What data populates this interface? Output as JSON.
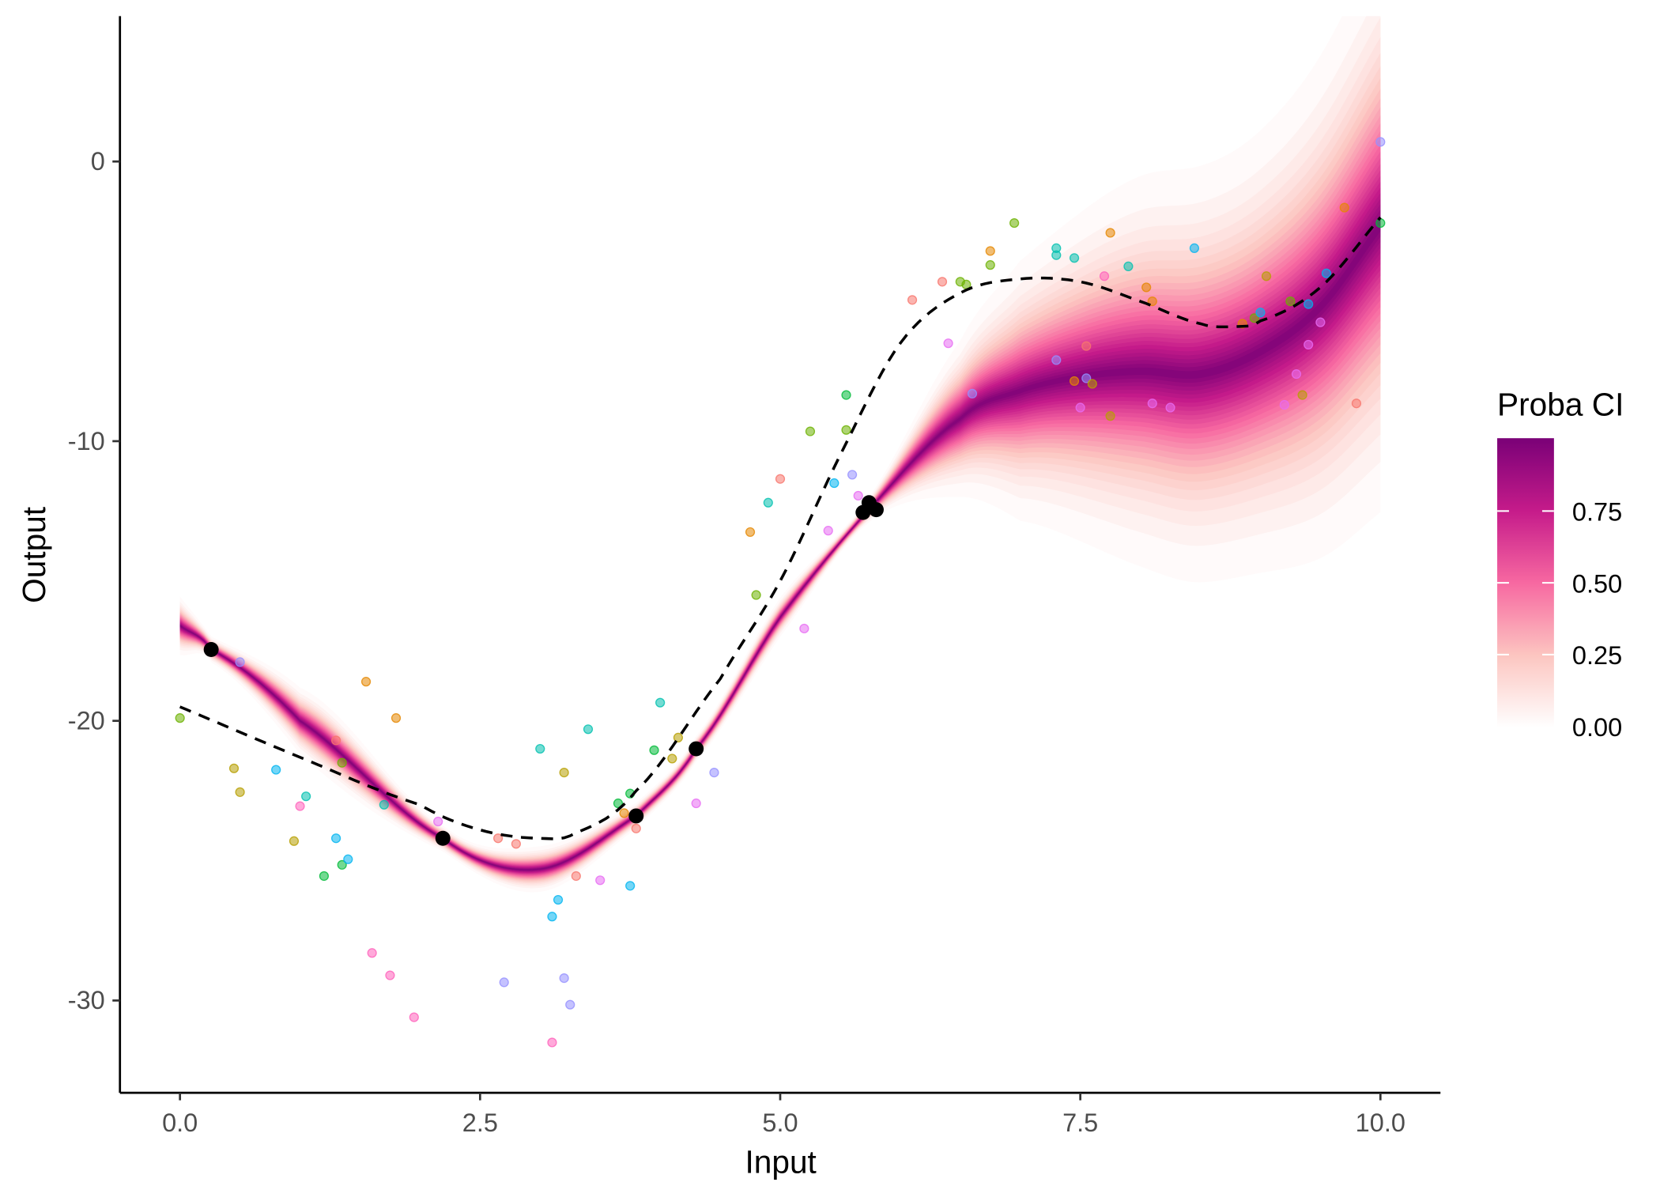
{
  "chart_data": {
    "type": "line",
    "xlabel": "Input",
    "ylabel": "Output",
    "xlim": [
      -0.5,
      10.5
    ],
    "ylim": [
      -33.3,
      5.2
    ],
    "x_ticks": [
      0,
      2.5,
      5,
      7.5,
      10
    ],
    "x_tick_labels": [
      "0.0",
      "2.5",
      "5.0",
      "7.5",
      "10.0"
    ],
    "y_ticks": [
      0,
      -10,
      -20,
      -30
    ],
    "y_tick_labels": [
      "0",
      "-10",
      "-20",
      "-30"
    ],
    "grid": false,
    "legend": {
      "title": "Proba CI",
      "placement": "right",
      "ticks": [
        0.75,
        0.5,
        0.25,
        0
      ],
      "tick_labels": [
        "0.75",
        "0.50",
        "0.25",
        "0.00"
      ],
      "palette": [
        "#FFFFFF",
        "#FCC5C0",
        "#F768A1",
        "#C51B8A",
        "#7A0177"
      ]
    },
    "prediction_mean": {
      "x": [
        0,
        0.26,
        1,
        2.19,
        3,
        3.8,
        4.3,
        5,
        5.75,
        6.5,
        7,
        7.5,
        8,
        8.5,
        9,
        9.5,
        10
      ],
      "y": [
        -16.6,
        -17.45,
        -20.0,
        -24.2,
        -25.3,
        -23.4,
        -21.0,
        -16.3,
        -12.4,
        -9.2,
        -8.2,
        -7.7,
        -7.5,
        -7.6,
        -6.8,
        -5.2,
        -2.3
      ]
    },
    "prediction_sd": {
      "x": [
        0,
        0.26,
        1.2,
        2.19,
        3,
        3.8,
        4.3,
        5,
        5.75,
        6.5,
        7,
        8,
        9,
        10
      ],
      "sd": [
        0.45,
        0.2,
        0.55,
        0.2,
        0.35,
        0.2,
        0.2,
        0.3,
        0.2,
        1.2,
        2.0,
        3.0,
        3.4,
        4.4
      ]
    },
    "dashed_curve": {
      "x": [
        0,
        1,
        2,
        2.5,
        3,
        3.3,
        3.8,
        4.5,
        5,
        5.5,
        6,
        6.5,
        7,
        7.5,
        8,
        8.5,
        8.8,
        9,
        9.5,
        10
      ],
      "y": [
        -19.5,
        -21.3,
        -23.0,
        -23.9,
        -24.2,
        -24.0,
        -22.5,
        -18.5,
        -15.0,
        -10.5,
        -6.5,
        -4.7,
        -4.2,
        -4.3,
        -5.0,
        -5.8,
        -5.9,
        -5.7,
        -4.5,
        -2.0
      ]
    },
    "observations": [
      [
        0.26,
        -17.45
      ],
      [
        2.19,
        -24.2
      ],
      [
        3.8,
        -23.4
      ],
      [
        4.3,
        -21.0
      ],
      [
        5.69,
        -12.55
      ],
      [
        5.74,
        -12.2
      ],
      [
        5.8,
        -12.45
      ]
    ],
    "sample_colors": [
      "#F8766D",
      "#E58700",
      "#B79F00",
      "#6BB100",
      "#00BA38",
      "#00C0AF",
      "#00B4F0",
      "#9590FF",
      "#E76BF3",
      "#FF62BC"
    ],
    "samples": [
      [
        0,
        -19.9,
        3
      ],
      [
        0.5,
        -17.9,
        7
      ],
      [
        0.45,
        -21.7,
        2
      ],
      [
        0.5,
        -22.55,
        2
      ],
      [
        0.8,
        -21.75,
        6
      ],
      [
        1.05,
        -22.7,
        5
      ],
      [
        1.0,
        -23.05,
        9
      ],
      [
        0.95,
        -24.3,
        2
      ],
      [
        1.2,
        -25.55,
        4
      ],
      [
        1.3,
        -24.2,
        6
      ],
      [
        1.35,
        -25.15,
        4
      ],
      [
        1.4,
        -24.95,
        6
      ],
      [
        1.3,
        -20.7,
        0
      ],
      [
        1.35,
        -21.5,
        3
      ],
      [
        1.55,
        -18.6,
        1
      ],
      [
        1.8,
        -19.9,
        1
      ],
      [
        1.7,
        -23.0,
        5
      ],
      [
        1.6,
        -28.3,
        9
      ],
      [
        1.75,
        -29.1,
        9
      ],
      [
        1.95,
        -30.6,
        9
      ],
      [
        2.15,
        -23.6,
        8
      ],
      [
        2.65,
        -24.2,
        0
      ],
      [
        2.8,
        -24.4,
        0
      ],
      [
        2.7,
        -29.35,
        7
      ],
      [
        3.0,
        -21.0,
        5
      ],
      [
        3.2,
        -21.85,
        2
      ],
      [
        3.4,
        -20.3,
        5
      ],
      [
        3.3,
        -25.55,
        0
      ],
      [
        3.5,
        -25.7,
        8
      ],
      [
        3.15,
        -26.4,
        6
      ],
      [
        3.1,
        -27.0,
        6
      ],
      [
        3.2,
        -29.2,
        7
      ],
      [
        3.25,
        -30.15,
        7
      ],
      [
        3.1,
        -31.5,
        9
      ],
      [
        3.65,
        -22.95,
        4
      ],
      [
        3.7,
        -23.3,
        1
      ],
      [
        3.75,
        -22.6,
        4
      ],
      [
        3.8,
        -23.85,
        0
      ],
      [
        3.75,
        -25.9,
        6
      ],
      [
        3.95,
        -21.05,
        4
      ],
      [
        4.0,
        -19.35,
        5
      ],
      [
        4.1,
        -21.35,
        2
      ],
      [
        4.15,
        -20.6,
        2
      ],
      [
        4.3,
        -22.95,
        8
      ],
      [
        4.45,
        -21.85,
        7
      ],
      [
        4.75,
        -13.25,
        1
      ],
      [
        4.8,
        -15.5,
        3
      ],
      [
        4.9,
        -12.2,
        5
      ],
      [
        5.0,
        -11.35,
        0
      ],
      [
        5.2,
        -16.7,
        8
      ],
      [
        5.25,
        -9.65,
        3
      ],
      [
        5.4,
        -13.2,
        8
      ],
      [
        5.45,
        -11.5,
        6
      ],
      [
        5.55,
        -8.35,
        4
      ],
      [
        5.55,
        -9.6,
        3
      ],
      [
        5.6,
        -11.2,
        7
      ],
      [
        5.65,
        -11.95,
        8
      ],
      [
        6.1,
        -4.95,
        0
      ],
      [
        6.35,
        -4.3,
        0
      ],
      [
        6.4,
        -6.5,
        8
      ],
      [
        6.5,
        -4.3,
        3
      ],
      [
        6.55,
        -4.4,
        3
      ],
      [
        6.6,
        -8.3,
        7
      ],
      [
        6.75,
        -3.2,
        1
      ],
      [
        6.75,
        -3.7,
        3
      ],
      [
        6.95,
        -2.2,
        3
      ],
      [
        7.3,
        -3.1,
        5
      ],
      [
        7.3,
        -3.35,
        5
      ],
      [
        7.3,
        -7.1,
        7
      ],
      [
        7.45,
        -3.45,
        5
      ],
      [
        7.45,
        -7.85,
        1
      ],
      [
        7.5,
        -8.8,
        8
      ],
      [
        7.55,
        -7.75,
        7
      ],
      [
        7.55,
        -6.6,
        0
      ],
      [
        7.6,
        -7.95,
        2
      ],
      [
        7.7,
        -4.1,
        9
      ],
      [
        7.75,
        -2.55,
        1
      ],
      [
        7.75,
        -9.1,
        2
      ],
      [
        7.9,
        -3.75,
        5
      ],
      [
        8.05,
        -4.5,
        1
      ],
      [
        8.1,
        -5.0,
        1
      ],
      [
        8.1,
        -8.65,
        8
      ],
      [
        8.25,
        -8.8,
        8
      ],
      [
        8.45,
        -3.1,
        6
      ],
      [
        8.85,
        -5.8,
        1
      ],
      [
        8.95,
        -5.6,
        3
      ],
      [
        9.0,
        -5.4,
        6
      ],
      [
        9.05,
        -4.1,
        2
      ],
      [
        9.2,
        -8.7,
        8
      ],
      [
        9.25,
        -5.0,
        3
      ],
      [
        9.3,
        -7.6,
        8
      ],
      [
        9.35,
        -8.35,
        2
      ],
      [
        9.4,
        -5.1,
        6
      ],
      [
        9.4,
        -6.55,
        8
      ],
      [
        9.5,
        -5.75,
        8
      ],
      [
        9.55,
        -4.0,
        6
      ],
      [
        9.7,
        -1.65,
        1
      ],
      [
        9.8,
        -8.65,
        0
      ],
      [
        10,
        0.7,
        7
      ],
      [
        10,
        -2.2,
        4
      ]
    ]
  }
}
